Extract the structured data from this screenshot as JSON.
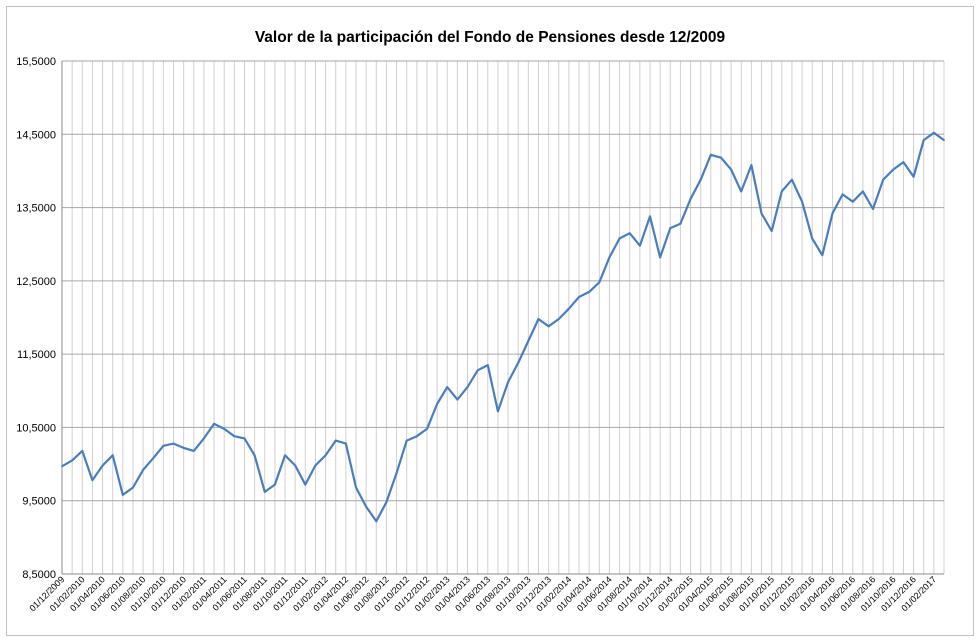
{
  "chart_data": {
    "type": "line",
    "title": "Valor de la participación del Fondo de Pensiones desde 12/2009",
    "xlabel": "",
    "ylabel": "",
    "ylim": [
      8.5,
      15.5
    ],
    "yticks": [
      "8,5000",
      "9,5000",
      "10,5000",
      "11,5000",
      "12,5000",
      "13,5000",
      "14,5000",
      "15,5000"
    ],
    "grid": "on",
    "legend": "none",
    "line_color": "#4a7ebb",
    "grid_h_color": "#a6a6a6",
    "grid_v_color": "#d0d0d0",
    "x_tick_labels": [
      "01/12/2009",
      "01/02/2010",
      "01/04/2010",
      "01/06/2010",
      "01/08/2010",
      "01/10/2010",
      "01/12/2010",
      "01/02/2011",
      "01/04/2011",
      "01/06/2011",
      "01/08/2011",
      "01/10/2011",
      "01/12/2011",
      "01/02/2012",
      "01/04/2012",
      "01/06/2012",
      "01/08/2012",
      "01/10/2012",
      "01/12/2012",
      "01/02/2013",
      "01/04/2013",
      "01/06/2013",
      "01/08/2013",
      "01/10/2013",
      "01/12/2013",
      "01/02/2014",
      "01/04/2014",
      "01/06/2014",
      "01/08/2014",
      "01/10/2014",
      "01/12/2014",
      "01/02/2015",
      "01/04/2015",
      "01/06/2015",
      "01/08/2015",
      "01/10/2015",
      "01/12/2015",
      "01/02/2016",
      "01/04/2016",
      "01/06/2016",
      "01/08/2016",
      "01/10/2016",
      "01/12/2016",
      "01/02/2017"
    ],
    "series": [
      {
        "x": [
          "2009-12",
          "2010-01",
          "2010-02",
          "2010-03",
          "2010-04",
          "2010-05",
          "2010-06",
          "2010-07",
          "2010-08",
          "2010-09",
          "2010-10",
          "2010-11",
          "2010-12",
          "2011-01",
          "2011-02",
          "2011-03",
          "2011-04",
          "2011-05",
          "2011-06",
          "2011-07",
          "2011-08",
          "2011-09",
          "2011-10",
          "2011-11",
          "2011-12",
          "2012-01",
          "2012-02",
          "2012-03",
          "2012-04",
          "2012-05",
          "2012-06",
          "2012-07",
          "2012-08",
          "2012-09",
          "2012-10",
          "2012-11",
          "2012-12",
          "2013-01",
          "2013-02",
          "2013-03",
          "2013-04",
          "2013-05",
          "2013-06",
          "2013-07",
          "2013-08",
          "2013-09",
          "2013-10",
          "2013-11",
          "2013-12",
          "2014-01",
          "2014-02",
          "2014-03",
          "2014-04",
          "2014-05",
          "2014-06",
          "2014-07",
          "2014-08",
          "2014-09",
          "2014-10",
          "2014-11",
          "2014-12",
          "2015-01",
          "2015-02",
          "2015-03",
          "2015-04",
          "2015-05",
          "2015-06",
          "2015-07",
          "2015-08",
          "2015-09",
          "2015-10",
          "2015-11",
          "2015-12",
          "2016-01",
          "2016-02",
          "2016-03",
          "2016-04",
          "2016-05",
          "2016-06",
          "2016-07",
          "2016-08",
          "2016-09",
          "2016-10",
          "2016-11",
          "2016-12",
          "2017-01",
          "2017-02",
          "2017-03"
        ],
        "values": [
          9.97,
          10.05,
          10.18,
          9.78,
          9.98,
          10.12,
          9.58,
          9.68,
          9.92,
          10.08,
          10.25,
          10.28,
          10.22,
          10.18,
          10.35,
          10.55,
          10.48,
          10.38,
          10.35,
          10.12,
          9.62,
          9.72,
          10.12,
          9.98,
          9.72,
          9.98,
          10.12,
          10.32,
          10.28,
          9.68,
          9.42,
          9.22,
          9.48,
          9.88,
          10.32,
          10.38,
          10.48,
          10.82,
          11.05,
          10.88,
          11.05,
          11.28,
          11.35,
          10.72,
          11.12,
          11.38,
          11.68,
          11.98,
          11.88,
          11.98,
          12.12,
          12.28,
          12.35,
          12.48,
          12.82,
          13.08,
          13.15,
          12.98,
          13.38,
          12.82,
          13.22,
          13.28,
          13.62,
          13.88,
          14.22,
          14.18,
          14.02,
          13.72,
          14.08,
          13.42,
          13.18,
          13.72,
          13.88,
          13.58,
          13.08,
          12.85,
          13.42,
          13.68,
          13.58,
          13.72,
          13.48,
          13.88,
          14.02,
          14.12,
          13.92,
          14.42,
          14.52,
          14.42
        ]
      }
    ]
  }
}
